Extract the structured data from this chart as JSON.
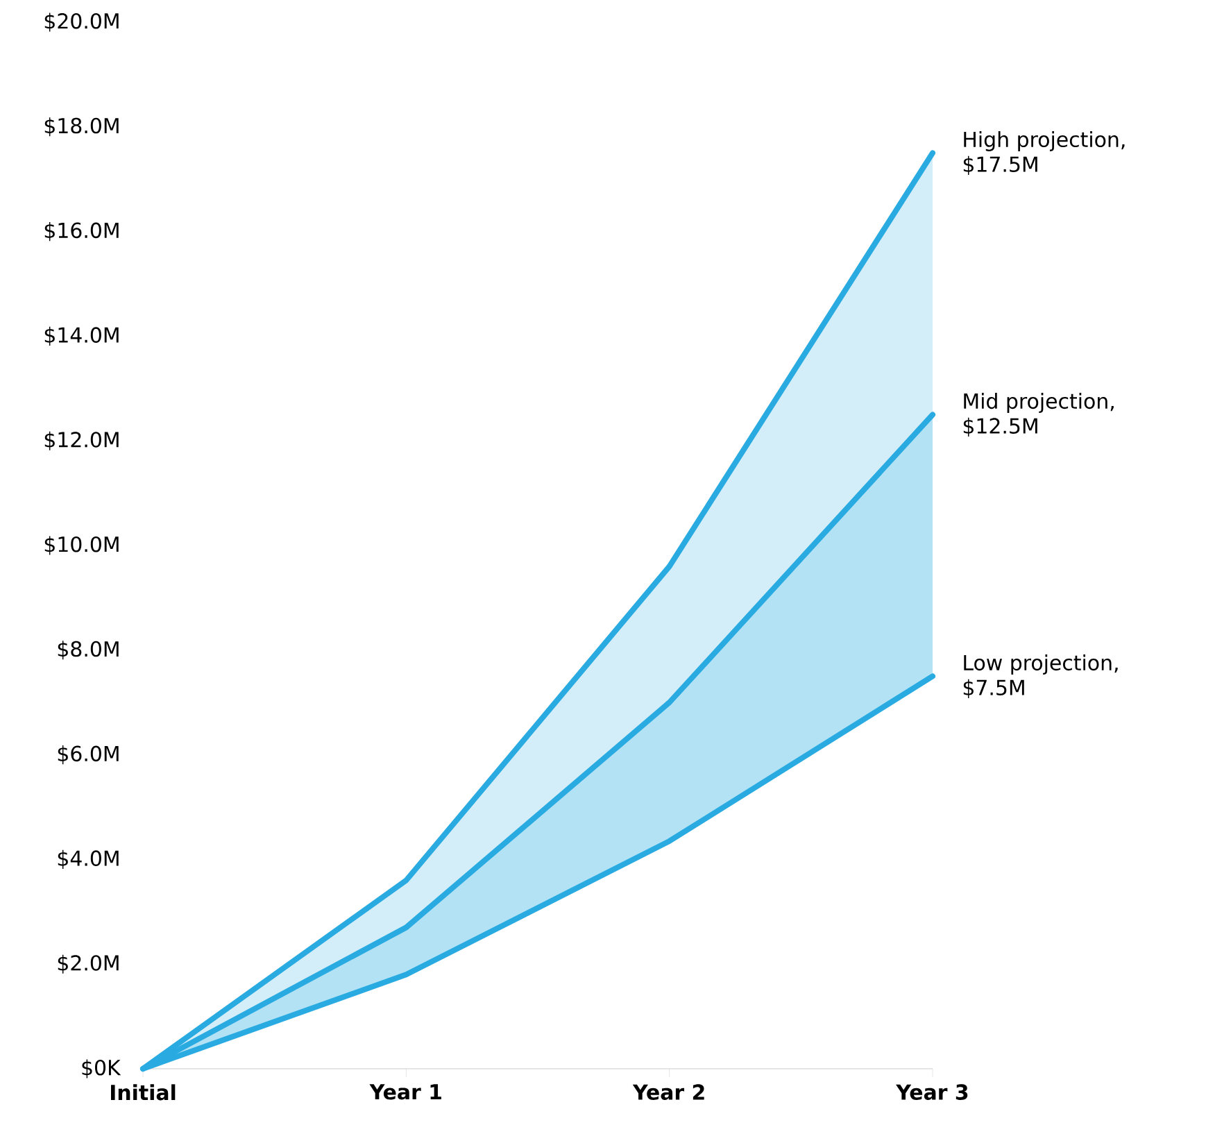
{
  "chart_data": {
    "type": "line",
    "categories": [
      "Initial",
      "Year 1",
      "Year 2",
      "Year 3"
    ],
    "ylim": [
      0,
      20
    ],
    "yticks": [
      {
        "value": 0,
        "label": "$0K"
      },
      {
        "value": 2,
        "label": "$2.0M"
      },
      {
        "value": 4,
        "label": "$4.0M"
      },
      {
        "value": 6,
        "label": "$6.0M"
      },
      {
        "value": 8,
        "label": "$8.0M"
      },
      {
        "value": 10,
        "label": "$10.0M"
      },
      {
        "value": 12,
        "label": "$12.0M"
      },
      {
        "value": 14,
        "label": "$14.0M"
      },
      {
        "value": 16,
        "label": "$16.0M"
      },
      {
        "value": 18,
        "label": "$18.0M"
      },
      {
        "value": 20,
        "label": "$20.0M"
      }
    ],
    "grid": false,
    "legend": false,
    "marker": "none",
    "line_style": "solid",
    "series": [
      {
        "name": "High projection,",
        "color": "#29abe2",
        "values": [
          0,
          3.6,
          9.6,
          17.5
        ],
        "lower": [
          0,
          2.7,
          7.0,
          12.5
        ],
        "upper": [
          0,
          3.6,
          9.6,
          17.5
        ],
        "value_labels": [
          null,
          null,
          null,
          "$17.5M"
        ]
      },
      {
        "name": "Mid projection,",
        "color": "#29abe2",
        "values": [
          0,
          2.7,
          7.0,
          12.5
        ],
        "lower": [
          0,
          1.8,
          4.35,
          7.5
        ],
        "upper": [
          0,
          2.7,
          7.0,
          12.5
        ],
        "value_labels": [
          null,
          null,
          null,
          "$12.5M"
        ]
      },
      {
        "name": "Low projection,",
        "color": "#29abe2",
        "values": [
          0,
          1.8,
          4.35,
          7.5
        ],
        "value_labels": [
          null,
          null,
          null,
          "$7.5M"
        ]
      }
    ]
  }
}
